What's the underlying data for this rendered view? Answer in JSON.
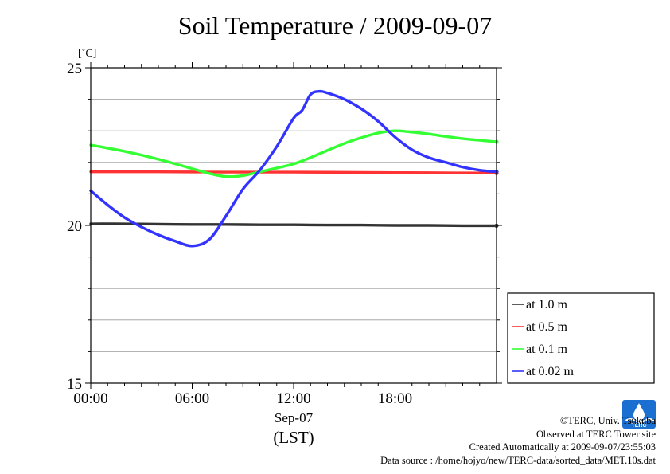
{
  "chart_data": {
    "type": "line",
    "title": "Soil Temperature / 2009-09-07",
    "ylabel": "[˚C]",
    "xlabel_date": "Sep-07",
    "xlabel_zone": "(LST)",
    "ylim": [
      15,
      25
    ],
    "xlim": [
      0,
      24
    ],
    "y_ticks": [
      15,
      20,
      25
    ],
    "y_tick_labels": [
      "15",
      "20",
      "25"
    ],
    "y_grid": [
      16,
      17,
      18,
      19,
      21,
      22,
      23,
      24
    ],
    "x_ticks": [
      0,
      6,
      12,
      18
    ],
    "x_tick_labels": [
      "00:00",
      "06:00",
      "12:00",
      "18:00"
    ],
    "grid": true,
    "legend_position": "right",
    "series": [
      {
        "name": "at 1.0 m",
        "color": "#333333",
        "x": [
          0,
          2,
          4,
          6,
          8,
          10,
          12,
          14,
          16,
          18,
          20,
          22,
          24
        ],
        "y": [
          20.05,
          20.05,
          20.04,
          20.03,
          20.03,
          20.02,
          20.02,
          20.01,
          20.01,
          20.0,
          20.0,
          19.99,
          19.99
        ]
      },
      {
        "name": "at 0.5 m",
        "color": "#ff3333",
        "x": [
          0,
          4,
          8,
          12,
          16,
          20,
          24
        ],
        "y": [
          21.7,
          21.7,
          21.69,
          21.69,
          21.68,
          21.67,
          21.66
        ]
      },
      {
        "name": "at 0.1 m",
        "color": "#33ff33",
        "x": [
          0,
          2,
          4,
          6,
          7,
          8,
          9,
          10,
          11,
          12,
          13,
          14,
          15,
          16,
          17,
          18,
          19,
          20,
          21,
          22,
          23,
          24
        ],
        "y": [
          22.55,
          22.35,
          22.1,
          21.8,
          21.65,
          21.55,
          21.58,
          21.7,
          21.82,
          21.95,
          22.15,
          22.38,
          22.6,
          22.78,
          22.93,
          23.0,
          22.96,
          22.9,
          22.82,
          22.75,
          22.7,
          22.65
        ]
      },
      {
        "name": "at 0.02 m",
        "color": "#3333ff",
        "x": [
          0,
          1,
          2,
          3,
          4,
          5,
          6,
          7,
          8,
          9,
          10,
          11,
          12,
          12.5,
          13,
          13.5,
          14,
          15,
          16,
          17,
          18,
          19,
          20,
          21,
          22,
          23,
          24
        ],
        "y": [
          21.1,
          20.65,
          20.25,
          19.95,
          19.7,
          19.5,
          19.35,
          19.55,
          20.3,
          21.15,
          21.75,
          22.5,
          23.4,
          23.65,
          24.15,
          24.25,
          24.2,
          24.0,
          23.7,
          23.3,
          22.8,
          22.4,
          22.15,
          22.0,
          21.85,
          21.75,
          21.7
        ]
      }
    ]
  },
  "credits": {
    "copyright": "©TERC, Univ. Tsukuba",
    "site": "Observed at TERC Tower site",
    "created": "Created Automatically at 2009-09-07/23:55:03",
    "source": "Data source : /home/hojyo/new/TERC-data/sorted_data/MET.10s.dat"
  },
  "logo": {
    "text": "TERC",
    "color": "#1a6fd1"
  }
}
